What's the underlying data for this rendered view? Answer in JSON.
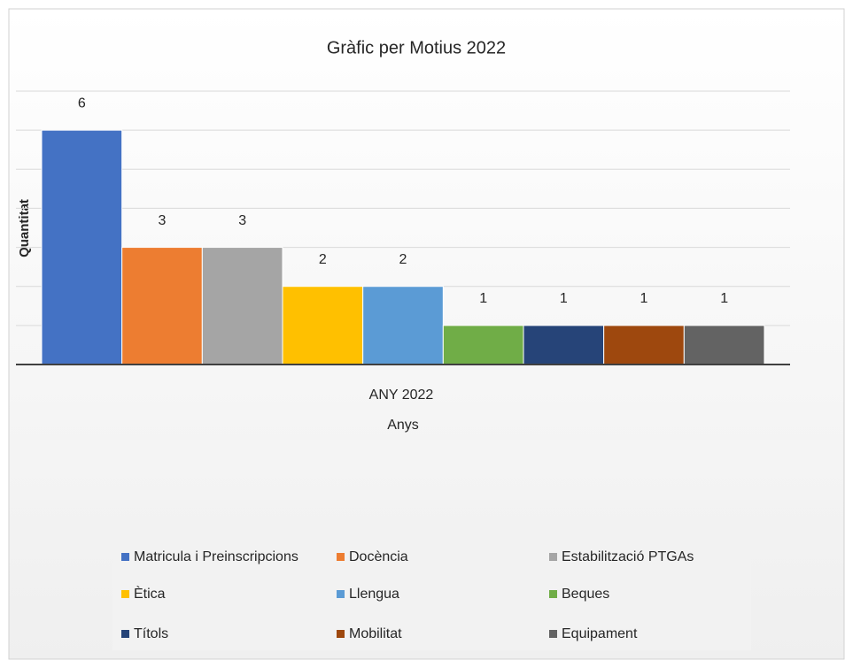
{
  "chart_data": {
    "type": "bar",
    "title": "Gràfic per Motius 2022",
    "x_label": "Anys",
    "y_label": "Quantitat",
    "categories": [
      "ANY 2022"
    ],
    "series": [
      {
        "name": "Matricula i Preinscripcions",
        "color": "#4472c4",
        "values": [
          6
        ]
      },
      {
        "name": "Docència",
        "color": "#ed7d31",
        "values": [
          3
        ]
      },
      {
        "name": "Estabilització PTGAs",
        "color": "#a5a5a5",
        "values": [
          3
        ]
      },
      {
        "name": "Ètica",
        "color": "#ffc000",
        "values": [
          2
        ]
      },
      {
        "name": "Llengua",
        "color": "#5b9bd5",
        "values": [
          2
        ]
      },
      {
        "name": "Beques",
        "color": "#70ad47",
        "values": [
          1
        ]
      },
      {
        "name": "Títols",
        "color": "#264478",
        "values": [
          1
        ]
      },
      {
        "name": "Mobilitat",
        "color": "#9e480e",
        "values": [
          1
        ]
      },
      {
        "name": "Equipament",
        "color": "#636363",
        "values": [
          1
        ]
      }
    ],
    "ylim": [
      0,
      7
    ],
    "yticks": [
      0,
      1,
      2,
      3,
      4,
      5,
      6,
      7
    ],
    "grid": true,
    "legend": "bottom"
  }
}
